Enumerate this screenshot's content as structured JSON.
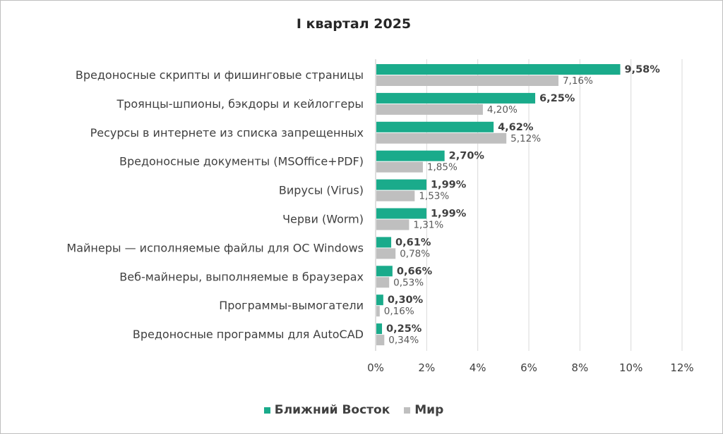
{
  "chart_data": {
    "type": "bar",
    "orientation": "horizontal",
    "title": "I квартал 2025",
    "categories": [
      "Вредоносные скрипты и фишинговые страницы",
      "Троянцы-шпионы, бэкдоры и кейлоггеры",
      "Ресурсы в интернете из списка запрещенных",
      "Вредоносные документы (MSOffice+PDF)",
      "Вирусы (Virus)",
      "Черви (Worm)",
      "Майнеры — исполняемые файлы для ОС Windows",
      "Веб-майнеры, выполняемые в браузерах",
      "Программы-вымогатели",
      "Вредоносные программы для AutoCAD"
    ],
    "series": [
      {
        "name": "Ближний Восток",
        "color": "#1aab8b",
        "values": [
          9.58,
          6.25,
          4.62,
          2.7,
          1.99,
          1.99,
          0.61,
          0.66,
          0.3,
          0.25
        ],
        "labels": [
          "9,58%",
          "6,25%",
          "4,62%",
          "2,70%",
          "1,99%",
          "1,99%",
          "0,61%",
          "0,66%",
          "0,30%",
          "0,25%"
        ]
      },
      {
        "name": "Мир",
        "color": "#bfbfbf",
        "values": [
          7.16,
          4.2,
          5.12,
          1.85,
          1.53,
          1.31,
          0.78,
          0.53,
          0.16,
          0.34
        ],
        "labels": [
          "7,16%",
          "4,20%",
          "5,12%",
          "1,85%",
          "1,53%",
          "1,31%",
          "0,78%",
          "0,53%",
          "0,16%",
          "0,34%"
        ]
      }
    ],
    "xlim": [
      0,
      12
    ],
    "xticks": [
      "0%",
      "2%",
      "4%",
      "6%",
      "8%",
      "10%",
      "12%"
    ],
    "grid": true,
    "legend_position": "bottom"
  }
}
